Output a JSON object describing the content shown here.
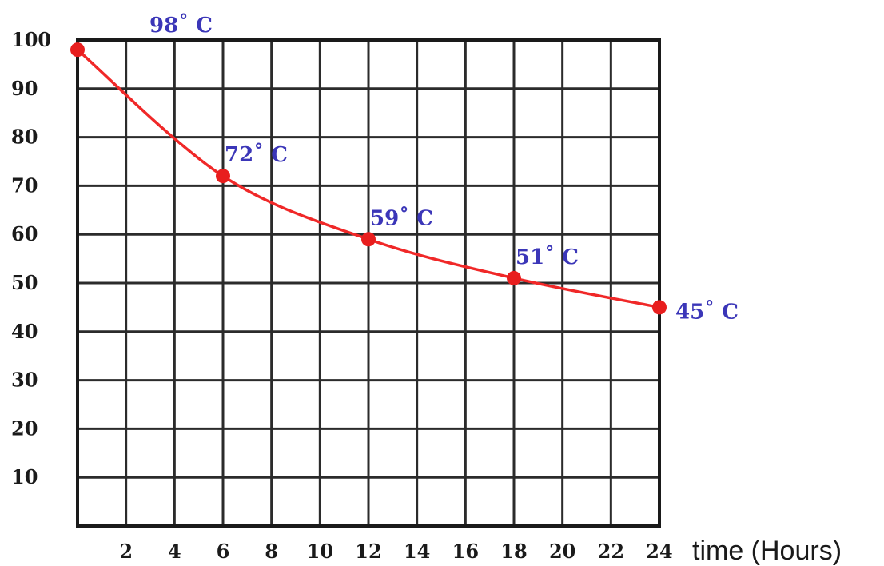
{
  "chart_data": {
    "type": "line",
    "xlabel": "time (Hours)",
    "ylabel": "",
    "xlim": [
      0,
      24
    ],
    "ylim": [
      0,
      100
    ],
    "x_ticks": [
      2,
      4,
      6,
      8,
      10,
      12,
      14,
      16,
      18,
      20,
      22,
      24
    ],
    "y_ticks": [
      10,
      20,
      30,
      40,
      50,
      60,
      70,
      80,
      90,
      100
    ],
    "grid": true,
    "colors": {
      "line": "#f02828",
      "point": "#e81e1e",
      "label": "#3b36b8",
      "grid": "#2b2b2b"
    },
    "series": [
      {
        "x": [
          0,
          6,
          12,
          18,
          24
        ],
        "y": [
          98,
          72,
          59,
          51,
          45
        ],
        "labels": [
          "98˚ C",
          "72˚ C",
          "59˚ C",
          "51˚ C",
          "45˚ C"
        ]
      }
    ]
  }
}
